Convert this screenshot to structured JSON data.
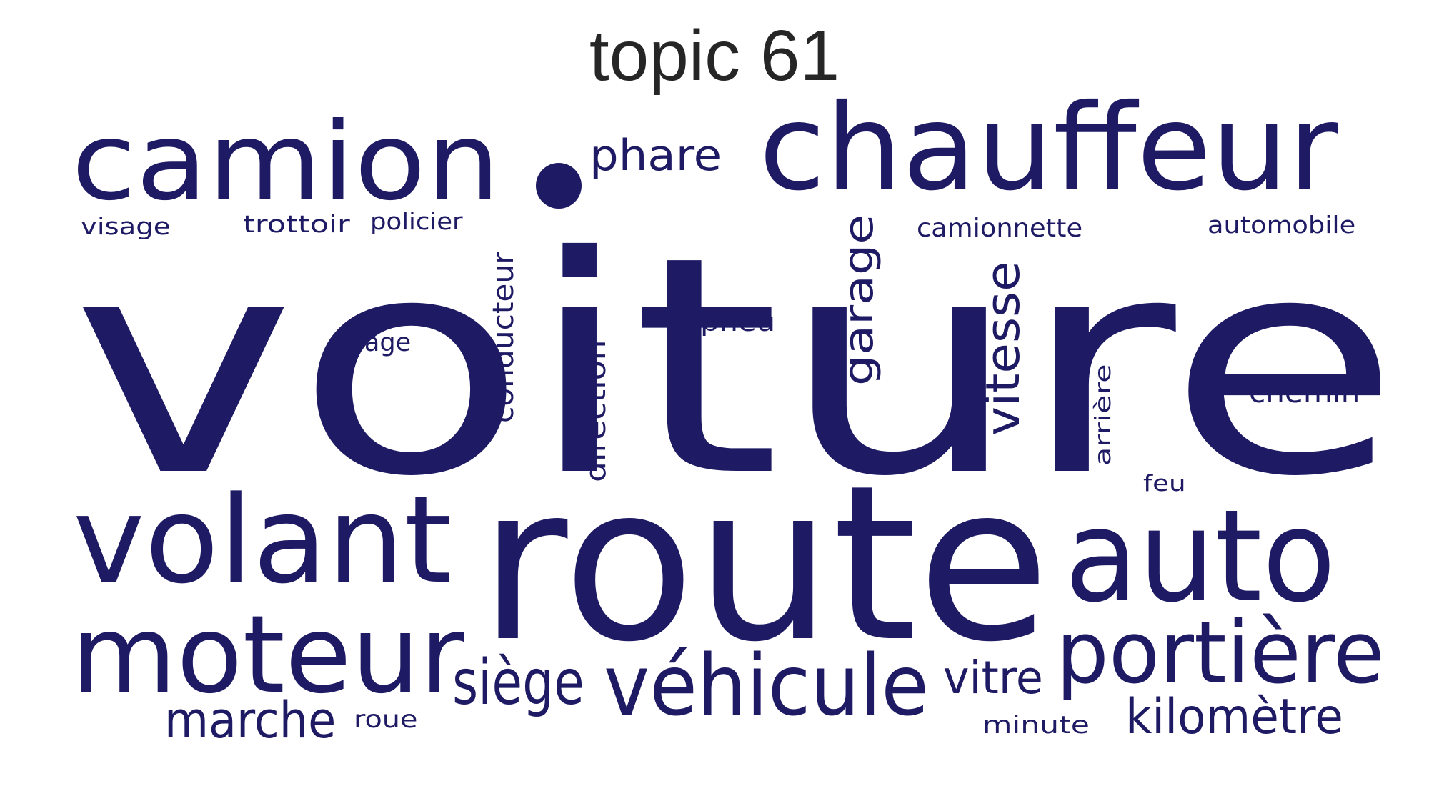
{
  "title": "topic 61",
  "word_color": "#1e1a64",
  "words": [
    {
      "text": "voiture",
      "rotated": false
    },
    {
      "text": "route",
      "rotated": false
    },
    {
      "text": "chauffeur",
      "rotated": false
    },
    {
      "text": "camion",
      "rotated": false
    },
    {
      "text": "auto",
      "rotated": false
    },
    {
      "text": "volant",
      "rotated": false
    },
    {
      "text": "moteur",
      "rotated": false
    },
    {
      "text": "portière",
      "rotated": false
    },
    {
      "text": "véhicule",
      "rotated": false
    },
    {
      "text": "siège",
      "rotated": false
    },
    {
      "text": "marche",
      "rotated": false
    },
    {
      "text": "kilomètre",
      "rotated": false
    },
    {
      "text": "vitre",
      "rotated": false
    },
    {
      "text": "phare",
      "rotated": false
    },
    {
      "text": "vitesse",
      "rotated": true
    },
    {
      "text": "garage",
      "rotated": true
    },
    {
      "text": "conducteur",
      "rotated": true
    },
    {
      "text": "direction",
      "rotated": true
    },
    {
      "text": "arrière",
      "rotated": true
    },
    {
      "text": "chemin",
      "rotated": false
    },
    {
      "text": "pneu",
      "rotated": false
    },
    {
      "text": "virage",
      "rotated": false
    },
    {
      "text": "camionnette",
      "rotated": false
    },
    {
      "text": "automobile",
      "rotated": false
    },
    {
      "text": "visage",
      "rotated": false
    },
    {
      "text": "trottoir",
      "rotated": false
    },
    {
      "text": "policier",
      "rotated": false
    },
    {
      "text": "feu",
      "rotated": false
    },
    {
      "text": "minute",
      "rotated": false
    },
    {
      "text": "roue",
      "rotated": false
    }
  ]
}
